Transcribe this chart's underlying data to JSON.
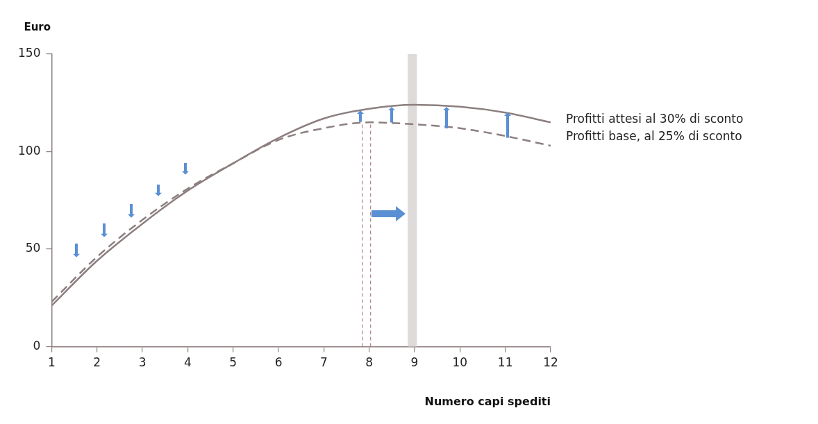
{
  "chart_data": {
    "type": "line",
    "ylabel": "Euro",
    "xlabel": "Numero capi spediti",
    "x": [
      1,
      2,
      3,
      4,
      5,
      6,
      7,
      8,
      9,
      10,
      11,
      12
    ],
    "xlim": [
      1,
      12
    ],
    "xticks": [
      1,
      2,
      3,
      4,
      5,
      6,
      7,
      8,
      9,
      10,
      11,
      12
    ],
    "ylim": [
      0,
      150
    ],
    "yticks": [
      0,
      50,
      100,
      150
    ],
    "grid": false,
    "legend": false,
    "marker": "none",
    "series": [
      {
        "name": "Profitti attesi al 30% di sconto",
        "color": "#8c7f7f",
        "line_style": "solid",
        "values": [
          21,
          44,
          63,
          80,
          94,
          107,
          117,
          122,
          124,
          123,
          120,
          115
        ]
      },
      {
        "name": "Profitti base, al 25% di sconto",
        "color": "#8c7f7f",
        "line_style": "dashed",
        "values": [
          23,
          46,
          65,
          81,
          94,
          106,
          112,
          115,
          114,
          112,
          108,
          103
        ]
      }
    ],
    "ref_lines": [
      {
        "axis": "x",
        "value": 7.85,
        "color": "#b08080",
        "line_style": "dashed"
      },
      {
        "axis": "x",
        "value": 8.03,
        "color": "#b08080",
        "line_style": "dashed"
      }
    ],
    "bands": [
      {
        "axis": "x",
        "from": 8.85,
        "to": 9.05,
        "color": "#dedada"
      }
    ]
  }
}
